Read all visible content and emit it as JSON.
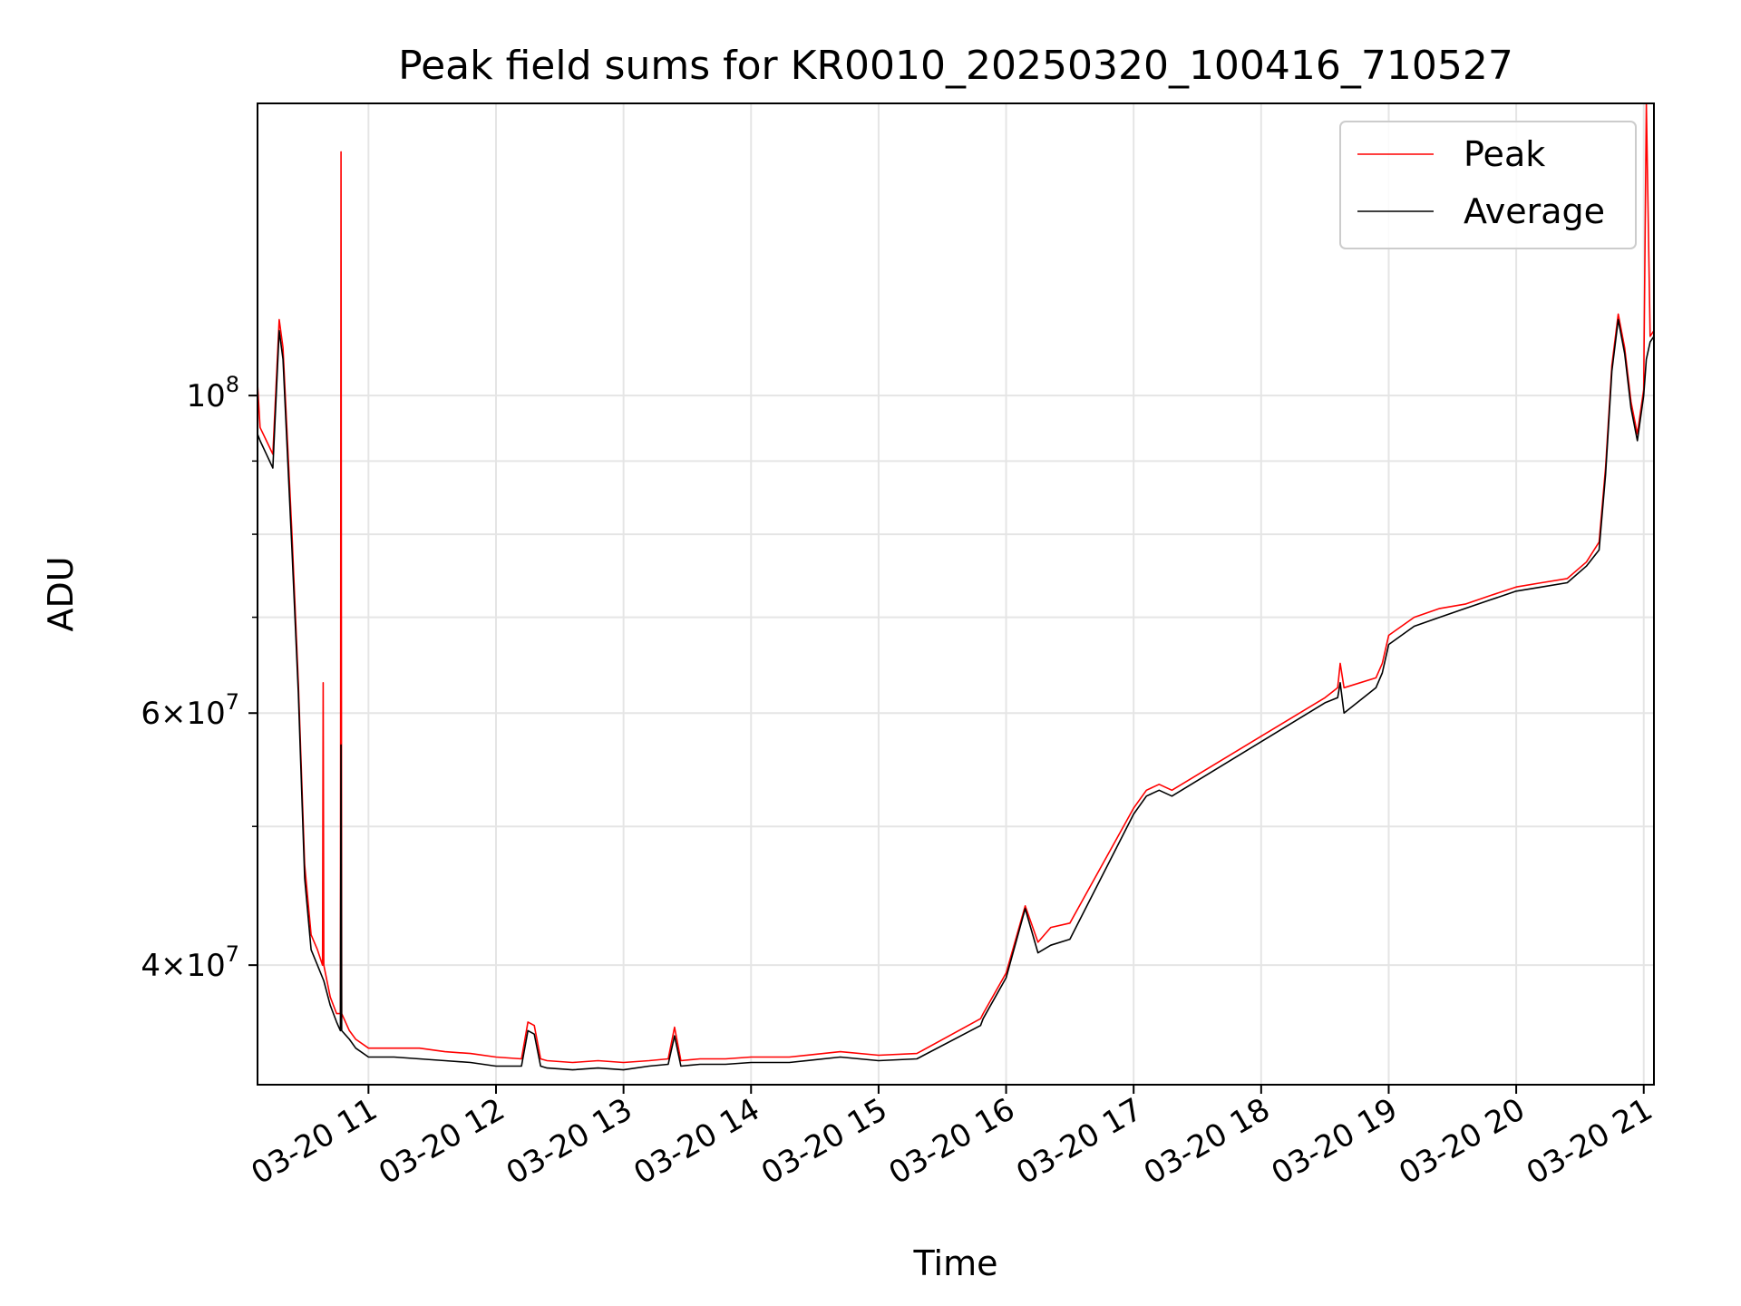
{
  "chart_data": {
    "type": "line",
    "title": "Peak field sums for KR0010_20250320_100416_710527",
    "xlabel": "Time",
    "ylabel": "ADU",
    "yscale": "log",
    "ylim": [
      33000000,
      160000000
    ],
    "xlim_hours": [
      10.13,
      21.08
    ],
    "grid": true,
    "legend_position": "upper right",
    "x_ticks": [
      {
        "value": 11,
        "label": "03-20 11"
      },
      {
        "value": 12,
        "label": "03-20 12"
      },
      {
        "value": 13,
        "label": "03-20 13"
      },
      {
        "value": 14,
        "label": "03-20 14"
      },
      {
        "value": 15,
        "label": "03-20 15"
      },
      {
        "value": 16,
        "label": "03-20 16"
      },
      {
        "value": 17,
        "label": "03-20 17"
      },
      {
        "value": 18,
        "label": "03-20 18"
      },
      {
        "value": 19,
        "label": "03-20 19"
      },
      {
        "value": 20,
        "label": "03-20 20"
      },
      {
        "value": 21,
        "label": "03-20 21"
      }
    ],
    "y_major_ticks": [
      {
        "value": 40000000,
        "mantissa": "4",
        "exp": "7"
      },
      {
        "value": 60000000,
        "mantissa": "6",
        "exp": "7"
      },
      {
        "value": 100000000,
        "mantissa": "",
        "exp": "8"
      }
    ],
    "y_minor_ticks": [
      50000000,
      70000000,
      80000000,
      90000000
    ],
    "series": [
      {
        "name": "Peak",
        "color": "#ff0000",
        "x": [
          10.13,
          10.15,
          10.2,
          10.25,
          10.3,
          10.33,
          10.36,
          10.4,
          10.45,
          10.5,
          10.55,
          10.6,
          10.64,
          10.645,
          10.65,
          10.7,
          10.75,
          10.78,
          10.785,
          10.79,
          10.85,
          10.9,
          11.0,
          11.2,
          11.4,
          11.6,
          11.8,
          12.0,
          12.2,
          12.25,
          12.3,
          12.35,
          12.4,
          12.6,
          12.8,
          13.0,
          13.2,
          13.35,
          13.4,
          13.45,
          13.6,
          13.8,
          14.0,
          14.3,
          14.7,
          15.0,
          15.3,
          15.8,
          15.82,
          16.0,
          16.15,
          16.25,
          16.35,
          16.5,
          17.0,
          17.1,
          17.2,
          17.3,
          18.5,
          18.6,
          18.62,
          18.65,
          18.9,
          18.95,
          19.0,
          19.2,
          19.4,
          19.6,
          19.8,
          20.0,
          20.2,
          20.4,
          20.55,
          20.65,
          20.7,
          20.75,
          20.8,
          20.85,
          20.9,
          20.95,
          21.0,
          21.02,
          21.05,
          21.08
        ],
        "y": [
          102000000,
          95000000,
          93000000,
          91000000,
          113000000,
          108000000,
          95000000,
          80000000,
          63000000,
          47000000,
          42000000,
          41000000,
          40000000,
          63000000,
          40000000,
          38000000,
          37000000,
          37000000,
          148000000,
          37000000,
          36000000,
          35500000,
          35000000,
          35000000,
          35000000,
          34800000,
          34700000,
          34500000,
          34400000,
          36500000,
          36300000,
          34400000,
          34300000,
          34200000,
          34300000,
          34200000,
          34300000,
          34400000,
          36200000,
          34300000,
          34400000,
          34400000,
          34500000,
          34500000,
          34800000,
          34600000,
          34700000,
          36700000,
          37000000,
          39500000,
          44000000,
          41500000,
          42500000,
          42800000,
          51500000,
          53000000,
          53500000,
          53000000,
          61500000,
          62500000,
          65000000,
          62500000,
          63500000,
          65000000,
          68000000,
          70000000,
          71000000,
          71500000,
          72500000,
          73500000,
          74000000,
          74500000,
          76500000,
          79000000,
          89000000,
          105000000,
          114000000,
          108000000,
          99000000,
          94000000,
          101000000,
          160000000,
          110000000,
          111000000
        ]
      },
      {
        "name": "Average",
        "color": "#000000",
        "x": [
          10.13,
          10.15,
          10.2,
          10.25,
          10.3,
          10.33,
          10.36,
          10.4,
          10.45,
          10.5,
          10.55,
          10.6,
          10.65,
          10.7,
          10.75,
          10.78,
          10.785,
          10.79,
          10.85,
          10.9,
          11.0,
          11.2,
          11.4,
          11.6,
          11.8,
          12.0,
          12.2,
          12.25,
          12.3,
          12.35,
          12.4,
          12.6,
          12.8,
          13.0,
          13.2,
          13.35,
          13.4,
          13.45,
          13.6,
          13.8,
          14.0,
          14.3,
          14.7,
          15.0,
          15.3,
          15.8,
          15.82,
          16.0,
          16.15,
          16.25,
          16.35,
          16.5,
          17.0,
          17.1,
          17.2,
          17.3,
          18.5,
          18.6,
          18.62,
          18.65,
          18.9,
          18.95,
          19.0,
          19.2,
          19.4,
          19.6,
          19.8,
          20.0,
          20.2,
          20.4,
          20.55,
          20.65,
          20.7,
          20.75,
          20.8,
          20.85,
          20.9,
          20.95,
          21.0,
          21.02,
          21.05,
          21.08
        ],
        "y": [
          94000000,
          93000000,
          91000000,
          89000000,
          111000000,
          106000000,
          93000000,
          78000000,
          62000000,
          46000000,
          41000000,
          40000000,
          39000000,
          37500000,
          36500000,
          36000000,
          57000000,
          36000000,
          35500000,
          35000000,
          34500000,
          34500000,
          34400000,
          34300000,
          34200000,
          34000000,
          34000000,
          36000000,
          35800000,
          34000000,
          33900000,
          33800000,
          33900000,
          33800000,
          34000000,
          34100000,
          35700000,
          34000000,
          34100000,
          34100000,
          34200000,
          34200000,
          34500000,
          34300000,
          34400000,
          36300000,
          36700000,
          39200000,
          43800000,
          40800000,
          41300000,
          41700000,
          51000000,
          52500000,
          53000000,
          52500000,
          61000000,
          61500000,
          63000000,
          60000000,
          62500000,
          64000000,
          67000000,
          69000000,
          70000000,
          71000000,
          72000000,
          73000000,
          73500000,
          74000000,
          76000000,
          78000000,
          88000000,
          104000000,
          113000000,
          107000000,
          98000000,
          93000000,
          100000000,
          106000000,
          109000000,
          110000000
        ]
      }
    ]
  }
}
